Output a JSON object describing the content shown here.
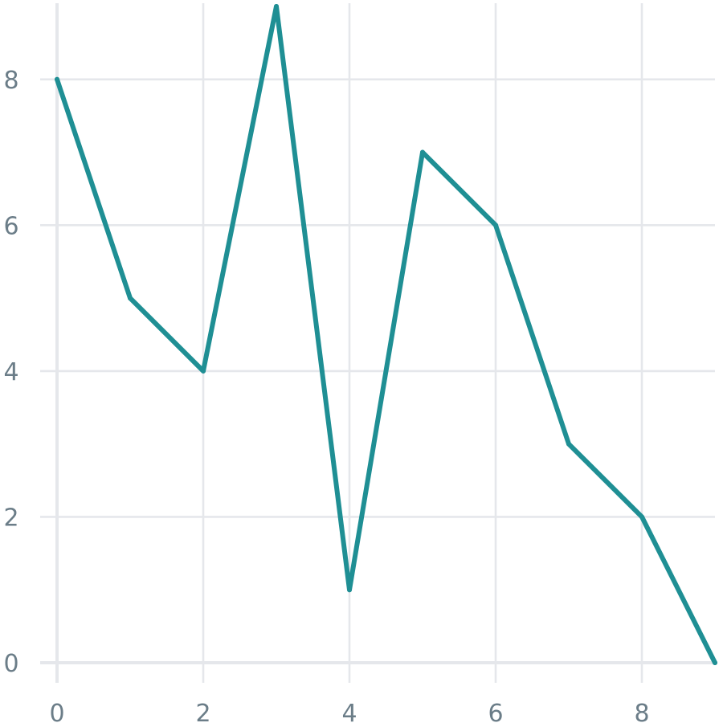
{
  "chart_data": {
    "type": "line",
    "title": "",
    "xlabel": "",
    "ylabel": "",
    "xlim": [
      0,
      9
    ],
    "ylim": [
      0,
      9
    ],
    "x_ticks": [
      0,
      2,
      4,
      6,
      8
    ],
    "y_ticks": [
      0,
      2,
      4,
      6,
      8
    ],
    "x_tick_labels": [
      "0",
      "2",
      "4",
      "6",
      "8"
    ],
    "y_tick_labels": [
      "0",
      "2",
      "4",
      "6",
      "8"
    ],
    "grid": true,
    "legend": "none",
    "series": [
      {
        "color": "#1f8f94",
        "x": [
          0,
          1,
          2,
          3,
          4,
          5,
          6,
          7,
          8,
          9
        ],
        "y": [
          8,
          5,
          4,
          9,
          1,
          7,
          6,
          3,
          2,
          0
        ]
      }
    ]
  }
}
